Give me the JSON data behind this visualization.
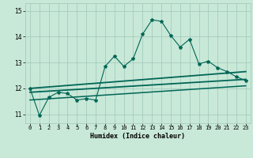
{
  "xlabel": "Humidex (Indice chaleur)",
  "bg_color": "#c8e8d8",
  "grid_color": "#a0c8b8",
  "line_color": "#006655",
  "xlim": [
    -0.5,
    23.5
  ],
  "ylim": [
    10.65,
    15.3
  ],
  "yticks": [
    11,
    12,
    13,
    14,
    15
  ],
  "xticks": [
    0,
    1,
    2,
    3,
    4,
    5,
    6,
    7,
    8,
    9,
    10,
    11,
    12,
    13,
    14,
    15,
    16,
    17,
    18,
    19,
    20,
    21,
    22,
    23
  ],
  "main_y": [
    12.0,
    10.95,
    11.65,
    11.85,
    11.8,
    11.55,
    11.6,
    11.55,
    12.85,
    13.25,
    12.85,
    13.15,
    14.1,
    14.65,
    14.6,
    14.05,
    13.6,
    13.9,
    12.95,
    13.05,
    12.8,
    12.65,
    12.45,
    12.3
  ],
  "trend1_x": [
    0,
    23
  ],
  "trend1_y": [
    12.0,
    12.65
  ],
  "trend2_x": [
    0,
    23
  ],
  "trend2_y": [
    11.85,
    12.35
  ],
  "trend3_x": [
    0,
    23
  ],
  "trend3_y": [
    11.55,
    12.1
  ]
}
